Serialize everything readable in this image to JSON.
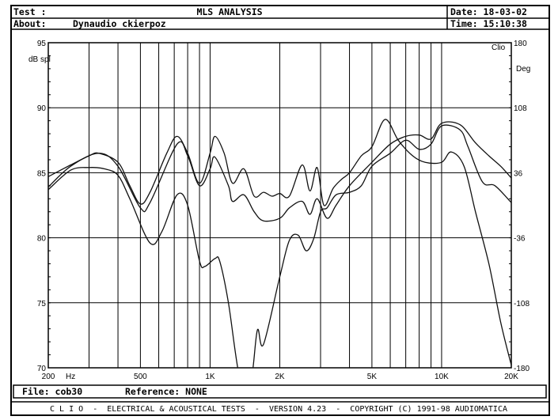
{
  "header": {
    "test_label": "Test :",
    "title": "MLS ANALYSIS",
    "date": "Date: 18-03-02",
    "about_label": "About:",
    "about_value": "Dynaudio ckierpoz",
    "time": "Time: 15:10:38"
  },
  "chart_data": {
    "type": "line",
    "title": "MLS ANALYSIS",
    "xlabel": "Hz",
    "ylabel": "dB spl",
    "y2label": "Deg",
    "brand": "Clio",
    "xscale": "log",
    "xlim": [
      200,
      20000
    ],
    "ylim": [
      70,
      95
    ],
    "y2lim": [
      -180,
      180
    ],
    "grid": true,
    "x_ticks": [
      {
        "f": 200,
        "label": "200"
      },
      {
        "f": 500,
        "label": "500"
      },
      {
        "f": 1000,
        "label": "1K"
      },
      {
        "f": 2000,
        "label": "2K"
      },
      {
        "f": 5000,
        "label": "5K"
      },
      {
        "f": 10000,
        "label": "10K"
      },
      {
        "f": 20000,
        "label": "20K"
      }
    ],
    "x_grid": [
      300,
      400,
      500,
      600,
      700,
      800,
      900,
      1000,
      2000,
      3000,
      4000,
      5000,
      6000,
      7000,
      8000,
      9000,
      10000
    ],
    "y_ticks": [
      95,
      90,
      85,
      80,
      75,
      70
    ],
    "y2_ticks": [
      "180",
      "108",
      "36",
      "-36",
      "-108",
      "-180"
    ],
    "series": [
      {
        "name": "curve-1",
        "points": [
          [
            200,
            84.7
          ],
          [
            250,
            85.6
          ],
          [
            300,
            86.3
          ],
          [
            330,
            86.5
          ],
          [
            400,
            85.8
          ],
          [
            450,
            84
          ],
          [
            500,
            82.6
          ],
          [
            550,
            83.5
          ],
          [
            650,
            86.5
          ],
          [
            720,
            87.8
          ],
          [
            800,
            86.5
          ],
          [
            900,
            84.2
          ],
          [
            1000,
            86.5
          ],
          [
            1050,
            87.8
          ],
          [
            1150,
            86.5
          ],
          [
            1250,
            84.2
          ],
          [
            1400,
            85.3
          ],
          [
            1550,
            83.2
          ],
          [
            1700,
            83.5
          ],
          [
            1850,
            83.2
          ],
          [
            2000,
            83.4
          ],
          [
            2200,
            83.2
          ],
          [
            2500,
            85.6
          ],
          [
            2700,
            83.6
          ],
          [
            2900,
            85.4
          ],
          [
            3100,
            82.5
          ],
          [
            3400,
            83.8
          ],
          [
            3700,
            84.5
          ],
          [
            4000,
            85
          ],
          [
            4500,
            86.3
          ],
          [
            5000,
            87
          ],
          [
            5700,
            89.1
          ],
          [
            6500,
            87.5
          ],
          [
            7500,
            86.3
          ],
          [
            8500,
            85.8
          ],
          [
            10000,
            85.8
          ],
          [
            11000,
            86.6
          ],
          [
            12500,
            85.5
          ],
          [
            14000,
            82
          ],
          [
            16000,
            78
          ],
          [
            18000,
            73.5
          ],
          [
            20000,
            70.2
          ]
        ]
      },
      {
        "name": "curve-2",
        "points": [
          [
            200,
            83.9
          ],
          [
            250,
            85.5
          ],
          [
            330,
            86.5
          ],
          [
            400,
            85.5
          ],
          [
            500,
            82.3
          ],
          [
            550,
            82.7
          ],
          [
            720,
            87.2
          ],
          [
            800,
            86.3
          ],
          [
            900,
            84
          ],
          [
            1000,
            85.3
          ],
          [
            1050,
            86.2
          ],
          [
            1200,
            84
          ],
          [
            1250,
            82.8
          ],
          [
            1400,
            83.3
          ],
          [
            1550,
            82
          ],
          [
            1700,
            81.3
          ],
          [
            2000,
            81.5
          ],
          [
            2200,
            82.3
          ],
          [
            2500,
            82.8
          ],
          [
            2700,
            81.8
          ],
          [
            2900,
            83
          ],
          [
            3200,
            81.5
          ],
          [
            3500,
            82.5
          ],
          [
            4000,
            84
          ],
          [
            5000,
            85.8
          ],
          [
            6000,
            87.2
          ],
          [
            7000,
            87.8
          ],
          [
            8000,
            87.9
          ],
          [
            9000,
            87.6
          ],
          [
            10000,
            88.8
          ],
          [
            12000,
            88.7
          ],
          [
            14000,
            87.3
          ],
          [
            16000,
            86.3
          ],
          [
            18000,
            85.5
          ],
          [
            20000,
            84.6
          ]
        ]
      },
      {
        "name": "curve-3",
        "points": [
          [
            200,
            83.7
          ],
          [
            250,
            85.2
          ],
          [
            300,
            85.4
          ],
          [
            350,
            85.3
          ],
          [
            400,
            84.8
          ],
          [
            450,
            83
          ],
          [
            550,
            79.6
          ],
          [
            620,
            80.5
          ],
          [
            720,
            83.3
          ],
          [
            800,
            82.5
          ],
          [
            900,
            78.2
          ],
          [
            950,
            77.8
          ],
          [
            1050,
            78.4
          ],
          [
            1100,
            78.2
          ],
          [
            1200,
            75
          ],
          [
            1350,
            69
          ],
          [
            1500,
            69
          ],
          [
            1600,
            72.9
          ],
          [
            1700,
            71.8
          ],
          [
            2000,
            77
          ],
          [
            2200,
            79.8
          ],
          [
            2400,
            80.2
          ],
          [
            2600,
            79
          ],
          [
            2800,
            79.9
          ],
          [
            3000,
            82
          ],
          [
            3200,
            82.3
          ],
          [
            3500,
            83.3
          ],
          [
            4000,
            83.5
          ],
          [
            4500,
            84
          ],
          [
            5000,
            85.5
          ],
          [
            6000,
            86.5
          ],
          [
            7000,
            87.5
          ],
          [
            8000,
            86.8
          ],
          [
            9000,
            87.2
          ],
          [
            10000,
            88.6
          ],
          [
            12000,
            88.3
          ],
          [
            13000,
            87
          ],
          [
            15000,
            84.3
          ],
          [
            17000,
            84
          ],
          [
            20000,
            82.7
          ]
        ]
      }
    ]
  },
  "footer": {
    "file": "File: cob30",
    "reference": "Reference: NONE",
    "credits": "C L I O  -  ELECTRICAL & ACOUSTICAL TESTS  -  VERSION 4.23  -  COPYRIGHT (C) 1991-98 AUDIOMATICA"
  }
}
